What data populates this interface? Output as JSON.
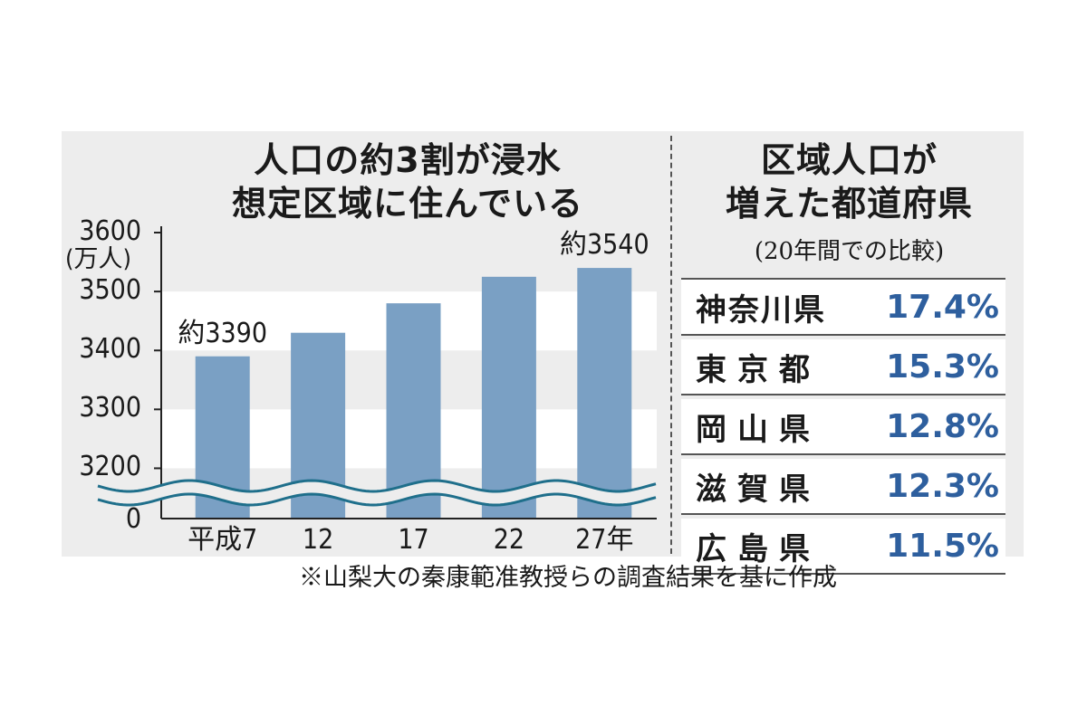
{
  "chart_data": [
    {
      "type": "bar",
      "title": "人口の約3割が浸水\n想定区域に住んでいる",
      "ylabel": "(万人)",
      "categories": [
        "平成7",
        "12",
        "17",
        "22",
        "27年"
      ],
      "values": [
        3390,
        3430,
        3480,
        3525,
        3540
      ],
      "data_labels": {
        "0": "約3390",
        "4": "約3540"
      },
      "yticks": [
        "3600",
        "3500",
        "3400",
        "3300",
        "3200",
        "0"
      ],
      "ylim": [
        3150,
        3600
      ],
      "axis_break": true,
      "bar_color": "#7aa0c4"
    },
    {
      "type": "table",
      "title": "区域人口が\n増えた都道府県",
      "subtitle": "(20年間での比較)",
      "rows": [
        {
          "name": "神奈川県",
          "value": "17.4%"
        },
        {
          "name": "東京都",
          "value": "15.3%"
        },
        {
          "name": "岡山県",
          "value": "12.8%"
        },
        {
          "name": "滋賀県",
          "value": "12.3%"
        },
        {
          "name": "広島県",
          "value": "11.5%"
        }
      ],
      "value_color": "#2e5f9e"
    }
  ],
  "note": "※山梨大の秦康範准教授らの調査結果を基に作成"
}
